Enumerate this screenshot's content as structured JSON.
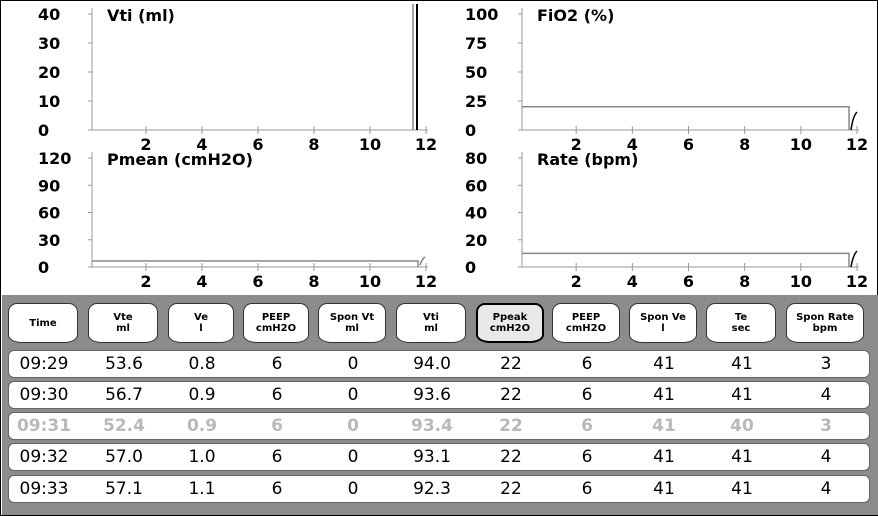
{
  "charts": [
    {
      "title": "Vti (ml)",
      "y_ticks": [
        "40",
        "30",
        "20",
        "10",
        "0"
      ],
      "x_ticks": [
        "2",
        "4",
        "6",
        "8",
        "10",
        "12"
      ]
    },
    {
      "title": "FiO2 (%)",
      "y_ticks": [
        "100",
        "75",
        "50",
        "25",
        "0"
      ],
      "x_ticks": [
        "2",
        "4",
        "6",
        "8",
        "10",
        "12"
      ]
    },
    {
      "title": "Pmean (cmH2O)",
      "y_ticks": [
        "120",
        "90",
        "60",
        "30",
        "0"
      ],
      "x_ticks": [
        "2",
        "4",
        "6",
        "8",
        "10",
        "12"
      ]
    },
    {
      "title": "Rate (bpm)",
      "y_ticks": [
        "80",
        "60",
        "40",
        "20",
        "0"
      ],
      "x_ticks": [
        "2",
        "4",
        "6",
        "8",
        "10",
        "12"
      ]
    }
  ],
  "table": {
    "columns": [
      {
        "line1": "Time",
        "line2": ""
      },
      {
        "line1": "Vte",
        "line2": "ml"
      },
      {
        "line1": "Ve",
        "line2": "l"
      },
      {
        "line1": "PEEP",
        "line2": "cmH2O"
      },
      {
        "line1": "Spon Vt",
        "line2": "ml"
      },
      {
        "line1": "Vti",
        "line2": "ml"
      },
      {
        "line1": "Ppeak",
        "line2": "cmH2O"
      },
      {
        "line1": "PEEP",
        "line2": "cmH2O"
      },
      {
        "line1": "Spon Ve",
        "line2": "l"
      },
      {
        "line1": "Te",
        "line2": "sec"
      },
      {
        "line1": "Spon Rate",
        "line2": "bpm"
      }
    ],
    "selected_column": 6,
    "rows": [
      {
        "values": [
          "09:29",
          "53.6",
          "0.8",
          "6",
          "0",
          "94.0",
          "22",
          "6",
          "41",
          "41",
          "3"
        ],
        "dimmed": false
      },
      {
        "values": [
          "09:30",
          "56.7",
          "0.9",
          "6",
          "0",
          "93.6",
          "22",
          "6",
          "41",
          "41",
          "4"
        ],
        "dimmed": false
      },
      {
        "values": [
          "09:31",
          "52.4",
          "0.9",
          "6",
          "0",
          "93.4",
          "22",
          "6",
          "41",
          "40",
          "3"
        ],
        "dimmed": true
      },
      {
        "values": [
          "09:32",
          "57.0",
          "1.0",
          "6",
          "0",
          "93.1",
          "22",
          "6",
          "41",
          "41",
          "4"
        ],
        "dimmed": false
      },
      {
        "values": [
          "09:33",
          "57.1",
          "1.1",
          "6",
          "0",
          "92.3",
          "22",
          "6",
          "41",
          "41",
          "4"
        ],
        "dimmed": false
      }
    ]
  },
  "colors": {
    "frame": "#000000",
    "table_background": "#8c8c8c",
    "trend_line": "#888888",
    "dim_text": "#b9b9b9"
  }
}
